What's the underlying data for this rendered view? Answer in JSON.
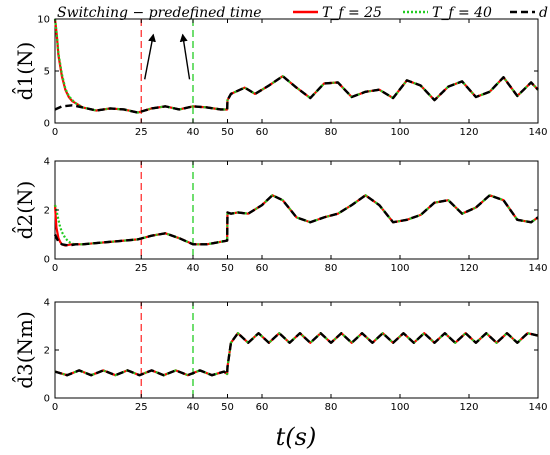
{
  "legend": {
    "title": "Switching − predefined time",
    "entries": [
      {
        "label": "T_f = 25",
        "color": "#ff0000",
        "dash": "solid"
      },
      {
        "label": "T_f = 40",
        "color": "#22cc22",
        "dash": "dotted"
      },
      {
        "label": "d",
        "color": "#000000",
        "dash": "dashed"
      }
    ]
  },
  "chart_data": {
    "type": "line",
    "xlabel": "t(s)",
    "xlim": [
      0,
      140
    ],
    "x_ticks": [
      0,
      25,
      40,
      50,
      60,
      80,
      100,
      120,
      140
    ],
    "vlines": [
      {
        "x": 25,
        "color": "#ff3333",
        "dash": "dashed"
      },
      {
        "x": 40,
        "color": "#22cc22",
        "dash": "dashed"
      }
    ],
    "subplots": [
      {
        "ylabel": "d̂1(N)",
        "ylim": [
          0,
          10
        ],
        "y_ticks": [
          0,
          5,
          10
        ],
        "annotations": [
          {
            "type": "arrow",
            "from": [
              26,
              4.2
            ],
            "to": [
              28.5,
              8.5
            ]
          },
          {
            "type": "arrow",
            "from": [
              39,
              4.2
            ],
            "to": [
              37,
              8.5
            ]
          }
        ],
        "series": [
          {
            "label": "d",
            "color": "#000000",
            "dash": "dashed",
            "x": [
              0,
              2,
              5,
              8,
              12,
              16,
              20,
              24,
              28,
              32,
              36,
              40,
              44,
              48,
              49.9,
              50,
              51,
              55,
              58,
              62,
              66,
              70,
              74,
              78,
              82,
              86,
              90,
              94,
              98,
              102,
              106,
              110,
              114,
              118,
              122,
              126,
              130,
              134,
              138,
              140
            ],
            "y": [
              1.3,
              1.6,
              1.7,
              1.5,
              1.2,
              1.4,
              1.3,
              1.0,
              1.4,
              1.6,
              1.3,
              1.6,
              1.5,
              1.3,
              1.3,
              2.2,
              2.8,
              3.4,
              2.8,
              3.6,
              4.5,
              3.4,
              2.4,
              3.8,
              3.9,
              2.5,
              3.0,
              3.2,
              2.4,
              4.1,
              3.6,
              2.2,
              3.5,
              4.0,
              2.5,
              3.0,
              4.4,
              2.6,
              3.9,
              3.2
            ]
          },
          {
            "label": "T_f = 25",
            "color": "#ff0000",
            "dash": "solid",
            "x": [
              0,
              0.5,
              1,
              2,
              3,
              4,
              5,
              6,
              8,
              12,
              16,
              20,
              24,
              28,
              32,
              36,
              40,
              44,
              48,
              49.9,
              50,
              51,
              55,
              58,
              62,
              66,
              70,
              74,
              78,
              82,
              86,
              90,
              94,
              98,
              102,
              106,
              110,
              114,
              118,
              122,
              126,
              130,
              134,
              138,
              140
            ],
            "y": [
              10,
              8.5,
              6.5,
              4.5,
              3.2,
              2.5,
              2.1,
              1.9,
              1.5,
              1.2,
              1.4,
              1.3,
              1.0,
              1.4,
              1.6,
              1.3,
              1.6,
              1.5,
              1.3,
              1.3,
              2.2,
              2.8,
              3.4,
              2.8,
              3.6,
              4.5,
              3.4,
              2.4,
              3.8,
              3.9,
              2.5,
              3.0,
              3.2,
              2.4,
              4.1,
              3.6,
              2.2,
              3.5,
              4.0,
              2.5,
              3.0,
              4.4,
              2.6,
              3.9,
              3.2
            ]
          },
          {
            "label": "T_f = 40",
            "color": "#22cc22",
            "dash": "dotted",
            "x": [
              0,
              0.5,
              1,
              2,
              3,
              4,
              5,
              6,
              8,
              12,
              16,
              20,
              24,
              28,
              32,
              36,
              40,
              44,
              48,
              49.9,
              50,
              51,
              55,
              58,
              62,
              66,
              70,
              74,
              78,
              82,
              86,
              90,
              94,
              98,
              102,
              106,
              110,
              114,
              118,
              122,
              126,
              130,
              134,
              138,
              140
            ],
            "y": [
              10,
              8.6,
              6.7,
              4.7,
              3.3,
              2.6,
              2.2,
              1.9,
              1.5,
              1.2,
              1.4,
              1.3,
              1.0,
              1.4,
              1.6,
              1.3,
              1.6,
              1.5,
              1.3,
              1.3,
              2.2,
              2.8,
              3.4,
              2.8,
              3.6,
              4.5,
              3.4,
              2.4,
              3.8,
              3.9,
              2.5,
              3.0,
              3.2,
              2.4,
              4.1,
              3.6,
              2.2,
              3.5,
              4.0,
              2.5,
              3.0,
              4.4,
              2.6,
              3.9,
              3.2
            ]
          }
        ]
      },
      {
        "ylabel": "d̂2(N)",
        "ylim": [
          0,
          4
        ],
        "y_ticks": [
          0,
          2,
          4
        ],
        "series": [
          {
            "label": "d",
            "color": "#000000",
            "dash": "dashed",
            "x": [
              0,
              0.5,
              1,
              2,
              4,
              6,
              8,
              12,
              16,
              20,
              24,
              28,
              32,
              36,
              40,
              44,
              48,
              49.9,
              50,
              51,
              53,
              56,
              60,
              63,
              66,
              70,
              74,
              78,
              82,
              86,
              90,
              94,
              98,
              102,
              106,
              110,
              114,
              118,
              122,
              126,
              130,
              134,
              138,
              140
            ],
            "y": [
              1.0,
              0.85,
              0.7,
              0.6,
              0.55,
              0.6,
              0.6,
              0.65,
              0.7,
              0.75,
              0.8,
              0.95,
              1.05,
              0.85,
              0.6,
              0.6,
              0.7,
              0.75,
              1.9,
              1.85,
              1.9,
              1.85,
              2.2,
              2.6,
              2.4,
              1.7,
              1.5,
              1.7,
              1.85,
              2.2,
              2.6,
              2.2,
              1.5,
              1.6,
              1.8,
              2.3,
              2.4,
              1.85,
              2.1,
              2.6,
              2.4,
              1.6,
              1.5,
              1.7
            ]
          },
          {
            "label": "T_f = 25",
            "color": "#ff0000",
            "dash": "solid",
            "x": [
              0,
              0.4,
              1,
              1.5,
              2,
              3,
              4,
              5,
              6,
              8,
              12,
              16,
              20,
              24,
              28,
              32,
              36,
              40,
              44,
              48,
              49.9,
              50,
              51,
              53,
              56,
              60,
              63,
              66,
              70,
              74,
              78,
              82,
              86,
              90,
              94,
              98,
              102,
              106,
              110,
              114,
              118,
              122,
              126,
              130,
              134,
              138,
              140
            ],
            "y": [
              2.2,
              1.3,
              0.85,
              0.7,
              0.6,
              0.55,
              0.58,
              0.6,
              0.6,
              0.6,
              0.65,
              0.7,
              0.75,
              0.8,
              0.95,
              1.05,
              0.85,
              0.6,
              0.6,
              0.7,
              0.75,
              1.9,
              1.85,
              1.9,
              1.85,
              2.2,
              2.6,
              2.4,
              1.7,
              1.5,
              1.7,
              1.85,
              2.2,
              2.6,
              2.2,
              1.5,
              1.6,
              1.8,
              2.3,
              2.4,
              1.85,
              2.1,
              2.6,
              2.4,
              1.6,
              1.5,
              1.7
            ]
          },
          {
            "label": "T_f = 40",
            "color": "#22cc22",
            "dash": "dotted",
            "x": [
              0,
              0.4,
              1,
              1.5,
              2,
              3,
              4,
              5,
              6,
              8,
              12,
              16,
              20,
              24,
              28,
              32,
              36,
              40,
              44,
              48,
              49.9,
              50,
              51,
              53,
              56,
              60,
              63,
              66,
              70,
              74,
              78,
              82,
              86,
              90,
              94,
              98,
              102,
              106,
              110,
              114,
              118,
              122,
              126,
              130,
              134,
              138,
              140
            ],
            "y": [
              2.2,
              2.0,
              1.6,
              1.3,
              1.1,
              0.85,
              0.7,
              0.62,
              0.6,
              0.6,
              0.65,
              0.7,
              0.75,
              0.8,
              0.95,
              1.05,
              0.85,
              0.6,
              0.6,
              0.7,
              0.75,
              1.9,
              1.85,
              1.9,
              1.85,
              2.2,
              2.6,
              2.4,
              1.7,
              1.5,
              1.7,
              1.85,
              2.2,
              2.6,
              2.2,
              1.5,
              1.6,
              1.8,
              2.3,
              2.4,
              1.85,
              2.1,
              2.6,
              2.4,
              1.6,
              1.5,
              1.7
            ]
          }
        ]
      },
      {
        "ylabel": "d̂3(Nm)",
        "ylim": [
          0,
          4
        ],
        "y_ticks": [
          0,
          2,
          4
        ],
        "series": [
          {
            "label": "d",
            "color": "#000000",
            "dash": "dashed",
            "x": [
              0,
              3.5,
              7,
              10.5,
              14,
              17.5,
              21,
              24.5,
              28,
              31.5,
              35,
              38.5,
              42,
              45.5,
              49,
              49.9,
              50,
              51,
              53,
              56,
              59,
              62,
              65,
              68,
              71,
              74,
              77,
              80,
              83,
              86,
              89,
              92,
              95,
              98,
              101,
              104,
              107,
              110,
              113,
              116,
              119,
              122,
              125,
              128,
              131,
              134,
              137,
              140
            ],
            "y": [
              1.1,
              0.95,
              1.15,
              0.95,
              1.15,
              0.95,
              1.15,
              0.95,
              1.15,
              0.95,
              1.15,
              0.95,
              1.15,
              0.95,
              1.1,
              1.0,
              1.3,
              2.3,
              2.7,
              2.3,
              2.7,
              2.3,
              2.7,
              2.3,
              2.7,
              2.3,
              2.7,
              2.3,
              2.7,
              2.3,
              2.7,
              2.3,
              2.7,
              2.3,
              2.7,
              2.3,
              2.7,
              2.3,
              2.7,
              2.3,
              2.7,
              2.3,
              2.7,
              2.3,
              2.7,
              2.3,
              2.7,
              2.6
            ]
          },
          {
            "label": "T_f = 25",
            "color": "#ff0000",
            "dash": "solid",
            "x": [
              0,
              3.5,
              7,
              10.5,
              14,
              17.5,
              21,
              24.5,
              28,
              31.5,
              35,
              38.5,
              42,
              45.5,
              49,
              49.9,
              50,
              51,
              53,
              56,
              59,
              62,
              65,
              68,
              71,
              74,
              77,
              80,
              83,
              86,
              89,
              92,
              95,
              98,
              101,
              104,
              107,
              110,
              113,
              116,
              119,
              122,
              125,
              128,
              131,
              134,
              137,
              140
            ],
            "y": [
              1.1,
              0.95,
              1.15,
              0.95,
              1.15,
              0.95,
              1.15,
              0.95,
              1.15,
              0.95,
              1.15,
              0.95,
              1.15,
              0.95,
              1.1,
              1.0,
              1.3,
              2.3,
              2.7,
              2.3,
              2.7,
              2.3,
              2.7,
              2.3,
              2.7,
              2.3,
              2.7,
              2.3,
              2.7,
              2.3,
              2.7,
              2.3,
              2.7,
              2.3,
              2.7,
              2.3,
              2.7,
              2.3,
              2.7,
              2.3,
              2.7,
              2.3,
              2.7,
              2.3,
              2.7,
              2.3,
              2.7,
              2.6
            ]
          },
          {
            "label": "T_f = 40",
            "color": "#22cc22",
            "dash": "dotted",
            "x": [
              0,
              3.5,
              7,
              10.5,
              14,
              17.5,
              21,
              24.5,
              28,
              31.5,
              35,
              38.5,
              42,
              45.5,
              49,
              49.9,
              50,
              51,
              53,
              56,
              59,
              62,
              65,
              68,
              71,
              74,
              77,
              80,
              83,
              86,
              89,
              92,
              95,
              98,
              101,
              104,
              107,
              110,
              113,
              116,
              119,
              122,
              125,
              128,
              131,
              134,
              137,
              140
            ],
            "y": [
              1.1,
              0.95,
              1.15,
              0.95,
              1.15,
              0.95,
              1.15,
              0.95,
              1.15,
              0.95,
              1.15,
              0.95,
              1.15,
              0.95,
              1.1,
              1.0,
              1.3,
              2.3,
              2.7,
              2.3,
              2.7,
              2.3,
              2.7,
              2.3,
              2.7,
              2.3,
              2.7,
              2.3,
              2.7,
              2.3,
              2.7,
              2.3,
              2.7,
              2.3,
              2.7,
              2.3,
              2.7,
              2.3,
              2.7,
              2.3,
              2.7,
              2.3,
              2.7,
              2.3,
              2.7,
              2.3,
              2.7,
              2.6
            ]
          }
        ]
      }
    ]
  }
}
